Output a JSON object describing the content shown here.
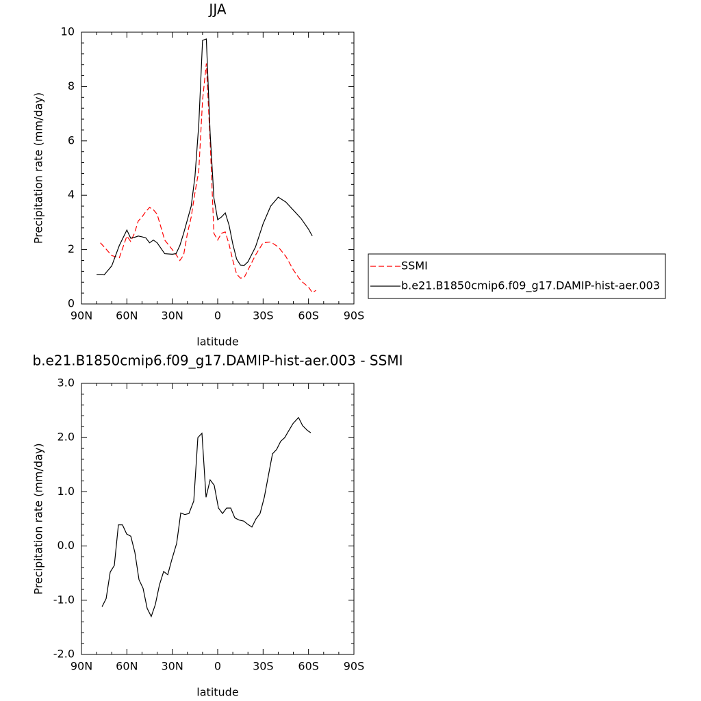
{
  "chart_data": [
    {
      "type": "line",
      "title": "JJA",
      "xlabel": "latitude",
      "ylabel": "Precipitation rate (mm/day)",
      "x": [
        80,
        77.5,
        75,
        70,
        65,
        60,
        57.5,
        55,
        52.5,
        50,
        47.5,
        45,
        42.5,
        40,
        35,
        30,
        27.5,
        25,
        22.5,
        20,
        17.5,
        15,
        12.5,
        10,
        7.5,
        5,
        2.5,
        0,
        -2.5,
        -5,
        -7.5,
        -10,
        -12.5,
        -15,
        -17.5,
        -20,
        -25,
        -30,
        -35,
        -40,
        -45,
        -50,
        -55,
        -60,
        -62.5,
        -65
      ],
      "series": [
        {
          "name": "SSMI",
          "color": "#ff0000",
          "dashed": true,
          "values": [
            null,
            2.25,
            2.1,
            1.78,
            1.7,
            2.5,
            2.3,
            2.6,
            3.05,
            3.2,
            3.4,
            3.55,
            3.47,
            3.3,
            2.35,
            2.0,
            1.82,
            1.6,
            1.8,
            2.6,
            3.2,
            4.1,
            4.9,
            7.5,
            8.85,
            6.0,
            2.6,
            2.35,
            2.6,
            2.65,
            2.2,
            1.6,
            1.1,
            0.95,
            0.97,
            1.25,
            1.8,
            2.25,
            2.28,
            2.1,
            1.75,
            1.25,
            0.85,
            0.62,
            0.42,
            0.5
          ]
        },
        {
          "name": "b.e21.B1850cmip6.f09_g17.DAMIP-hist-aer.003",
          "color": "#000000",
          "dashed": false,
          "values": [
            1.08,
            1.08,
            1.07,
            1.4,
            2.15,
            2.72,
            2.42,
            2.45,
            2.5,
            2.47,
            2.43,
            2.25,
            2.35,
            2.25,
            1.85,
            1.83,
            1.85,
            2.15,
            2.6,
            3.1,
            3.6,
            4.7,
            6.6,
            9.7,
            9.75,
            6.3,
            3.9,
            3.1,
            3.2,
            3.35,
            2.9,
            2.2,
            1.65,
            1.43,
            1.42,
            1.55,
            2.1,
            2.95,
            3.6,
            3.93,
            3.75,
            3.45,
            3.15,
            2.75,
            2.5,
            null
          ]
        }
      ],
      "xlim": [
        90,
        -90
      ],
      "xticks": [
        {
          "value": 90,
          "label": "90N"
        },
        {
          "value": 60,
          "label": "60N"
        },
        {
          "value": 30,
          "label": "30N"
        },
        0,
        {
          "value": -30,
          "label": "30S"
        },
        {
          "value": -60,
          "label": "60S"
        },
        {
          "value": -90,
          "label": "90S"
        }
      ],
      "ylim": [
        0,
        10
      ],
      "yticks": [
        0,
        2,
        4,
        6,
        8,
        10
      ],
      "legend": "right"
    },
    {
      "type": "line",
      "title": "b.e21.B1850cmip6.f09_g17.DAMIP-hist-aer.003 - SSMI",
      "xlabel": "latitude",
      "ylabel": "Precipitation rate (mm/day)",
      "x": [
        76.4,
        73.7,
        71.0,
        68.3,
        65.6,
        62.9,
        60.1,
        57.4,
        54.7,
        52.0,
        49.3,
        46.6,
        43.9,
        41.2,
        38.5,
        35.7,
        33.0,
        30.3,
        27.1,
        24.4,
        21.7,
        19.0,
        15.8,
        13.1,
        10.4,
        7.7,
        5.0,
        2.3,
        -0.5,
        -3.2,
        -5.9,
        -8.6,
        -11.3,
        -14.0,
        -17.2,
        -19.9,
        -22.6,
        -25.3,
        -28.0,
        -30.8,
        -33.5,
        -36.2,
        -38.9,
        -41.6,
        -44.3,
        -47.0,
        -49.8,
        -53.4,
        -56.1,
        -59.3,
        -61.5
      ],
      "values": [
        -1.12,
        -0.97,
        -0.48,
        -0.36,
        0.39,
        0.39,
        0.22,
        0.18,
        -0.12,
        -0.62,
        -0.78,
        -1.15,
        -1.3,
        -1.08,
        -0.72,
        -0.47,
        -0.53,
        -0.25,
        0.05,
        0.61,
        0.58,
        0.6,
        0.83,
        2.0,
        2.08,
        0.9,
        1.22,
        1.12,
        0.7,
        0.6,
        0.7,
        0.7,
        0.52,
        0.48,
        0.46,
        0.4,
        0.35,
        0.5,
        0.6,
        0.9,
        1.3,
        1.7,
        1.78,
        1.93,
        2.0,
        2.13,
        2.26,
        2.37,
        2.22,
        2.13,
        2.09
      ],
      "color": "#000000",
      "xlim": [
        90,
        -90
      ],
      "xticks": [
        {
          "value": 90,
          "label": "90N"
        },
        {
          "value": 60,
          "label": "60N"
        },
        {
          "value": 30,
          "label": "30N"
        },
        0,
        {
          "value": -30,
          "label": "30S"
        },
        {
          "value": -60,
          "label": "60S"
        },
        {
          "value": -90,
          "label": "90S"
        }
      ],
      "ylim": [
        -2,
        3
      ],
      "yticks": [
        {
          "value": -2,
          "label": "-2.0"
        },
        {
          "value": -1,
          "label": "-1.0"
        },
        {
          "value": 0,
          "label": "0.0"
        },
        {
          "value": 1,
          "label": "1.0"
        },
        {
          "value": 2,
          "label": "2.0"
        },
        {
          "value": 3,
          "label": "3.0"
        }
      ]
    }
  ]
}
